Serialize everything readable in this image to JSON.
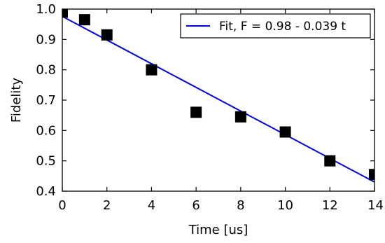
{
  "chart_data": {
    "type": "scatter",
    "title": "",
    "xlabel": "Time [us]",
    "ylabel": "Fidelity",
    "xlim": [
      0,
      14
    ],
    "ylim": [
      0.4,
      1.0
    ],
    "xticks": [
      0,
      2,
      4,
      6,
      8,
      10,
      12,
      14
    ],
    "xtick_labels": [
      "0",
      "2",
      "4",
      "6",
      "8",
      "10",
      "12",
      "14"
    ],
    "yticks": [
      0.4,
      0.5,
      0.6,
      0.7,
      0.8,
      0.9,
      1.0
    ],
    "ytick_labels": [
      "0.4",
      "0.5",
      "0.6",
      "0.7",
      "0.8",
      "0.9",
      "1.0"
    ],
    "grid": false,
    "legend_position": "top-right",
    "series": [
      {
        "kind": "scatter",
        "marker": "square",
        "color": "#000000",
        "x": [
          0,
          1,
          2,
          4,
          6,
          8,
          10,
          12,
          14
        ],
        "y": [
          0.99,
          0.965,
          0.915,
          0.8,
          0.66,
          0.645,
          0.595,
          0.5,
          0.455
        ]
      },
      {
        "kind": "line",
        "name": "Fit, F = 0.98 - 0.039 t",
        "color": "#0000dd",
        "x": [
          0,
          14
        ],
        "y": [
          0.976,
          0.43
        ]
      }
    ]
  }
}
